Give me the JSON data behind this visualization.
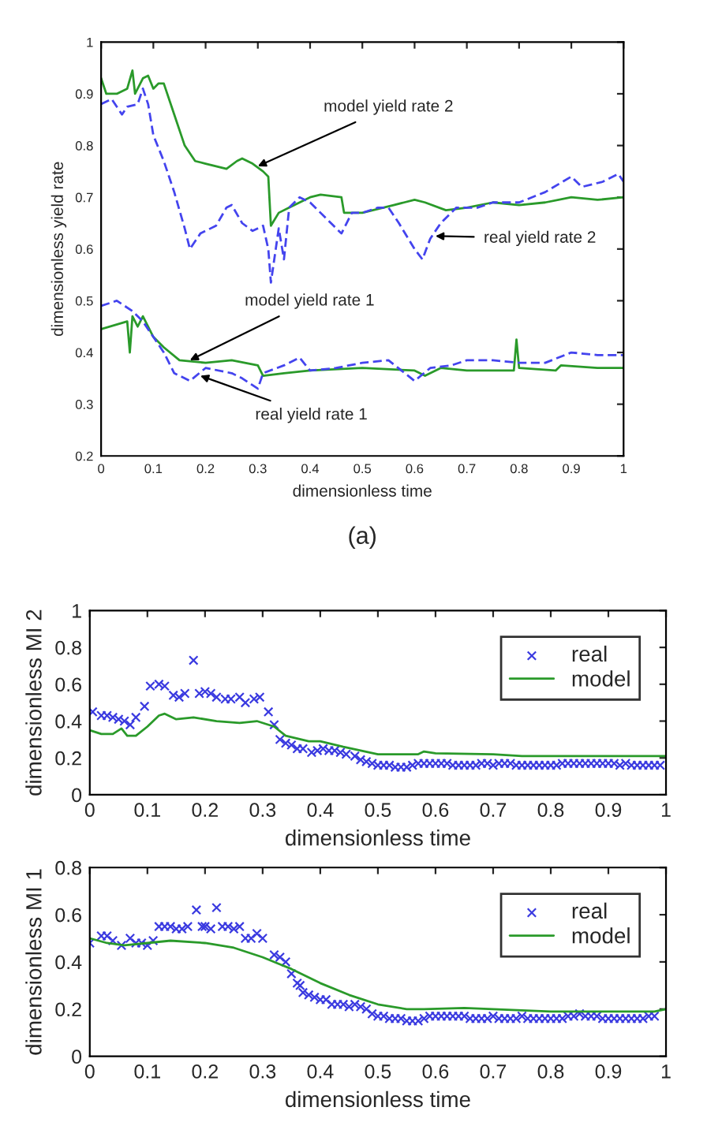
{
  "chart_data": [
    {
      "type": "line",
      "xlabel": "dimensionless time",
      "ylabel": "dimensionless yield rate",
      "xlim": [
        0,
        1
      ],
      "ylim": [
        0.2,
        1
      ],
      "xticks": [
        0,
        0.1,
        0.2,
        0.3,
        0.4,
        0.5,
        0.6,
        0.7,
        0.8,
        0.9,
        1
      ],
      "yticks": [
        0.2,
        0.3,
        0.4,
        0.5,
        0.6,
        0.7,
        0.8,
        0.9,
        1
      ],
      "grid": false,
      "legend": false,
      "series": [
        {
          "color": "#2a9a2a",
          "line_style": "solid",
          "x": [
            0,
            0.01,
            0.03,
            0.05,
            0.06,
            0.065,
            0.08,
            0.09,
            0.1,
            0.11,
            0.12,
            0.14,
            0.16,
            0.18,
            0.2,
            0.22,
            0.24,
            0.26,
            0.27,
            0.29,
            0.31,
            0.32,
            0.325,
            0.34,
            0.36,
            0.38,
            0.4,
            0.42,
            0.46,
            0.465,
            0.5,
            0.54,
            0.56,
            0.58,
            0.6,
            0.62,
            0.66,
            0.7,
            0.75,
            0.8,
            0.85,
            0.9,
            0.95,
            1
          ],
          "values": [
            0.93,
            0.9,
            0.9,
            0.91,
            0.945,
            0.9,
            0.93,
            0.935,
            0.91,
            0.92,
            0.92,
            0.86,
            0.8,
            0.77,
            0.765,
            0.76,
            0.755,
            0.77,
            0.775,
            0.765,
            0.75,
            0.74,
            0.645,
            0.67,
            0.68,
            0.69,
            0.7,
            0.705,
            0.7,
            0.67,
            0.67,
            0.68,
            0.685,
            0.69,
            0.695,
            0.69,
            0.675,
            0.68,
            0.69,
            0.685,
            0.69,
            0.7,
            0.695,
            0.7
          ]
        },
        {
          "color": "#4444ee",
          "line_style": "dashed",
          "x": [
            0,
            0.02,
            0.04,
            0.05,
            0.07,
            0.08,
            0.09,
            0.1,
            0.12,
            0.14,
            0.16,
            0.17,
            0.19,
            0.22,
            0.24,
            0.25,
            0.27,
            0.29,
            0.31,
            0.32,
            0.325,
            0.34,
            0.35,
            0.36,
            0.38,
            0.4,
            0.42,
            0.44,
            0.46,
            0.48,
            0.5,
            0.53,
            0.55,
            0.57,
            0.6,
            0.615,
            0.63,
            0.65,
            0.68,
            0.72,
            0.75,
            0.8,
            0.85,
            0.9,
            0.92,
            0.96,
            0.99,
            1
          ],
          "values": [
            0.88,
            0.89,
            0.86,
            0.875,
            0.88,
            0.91,
            0.88,
            0.82,
            0.77,
            0.71,
            0.64,
            0.6,
            0.63,
            0.645,
            0.68,
            0.685,
            0.65,
            0.635,
            0.645,
            0.6,
            0.535,
            0.64,
            0.58,
            0.68,
            0.7,
            0.69,
            0.67,
            0.65,
            0.63,
            0.67,
            0.67,
            0.68,
            0.68,
            0.65,
            0.6,
            0.58,
            0.62,
            0.65,
            0.68,
            0.68,
            0.69,
            0.69,
            0.71,
            0.74,
            0.72,
            0.73,
            0.745,
            0.73
          ]
        },
        {
          "color": "#2a9a2a",
          "line_style": "solid",
          "x": [
            0,
            0.05,
            0.055,
            0.06,
            0.07,
            0.08,
            0.1,
            0.12,
            0.15,
            0.2,
            0.25,
            0.3,
            0.31,
            0.35,
            0.4,
            0.5,
            0.6,
            0.62,
            0.65,
            0.7,
            0.79,
            0.795,
            0.8,
            0.87,
            0.88,
            0.95,
            1
          ],
          "values": [
            0.445,
            0.46,
            0.4,
            0.47,
            0.45,
            0.47,
            0.43,
            0.41,
            0.385,
            0.38,
            0.385,
            0.375,
            0.355,
            0.36,
            0.365,
            0.37,
            0.365,
            0.355,
            0.37,
            0.365,
            0.365,
            0.425,
            0.37,
            0.365,
            0.375,
            0.37,
            0.37
          ]
        },
        {
          "color": "#4444ee",
          "line_style": "dashed",
          "x": [
            0,
            0.03,
            0.06,
            0.08,
            0.1,
            0.12,
            0.14,
            0.17,
            0.2,
            0.25,
            0.27,
            0.3,
            0.31,
            0.35,
            0.38,
            0.4,
            0.45,
            0.5,
            0.55,
            0.6,
            0.63,
            0.67,
            0.7,
            0.75,
            0.8,
            0.85,
            0.9,
            0.95,
            1
          ],
          "values": [
            0.49,
            0.5,
            0.48,
            0.46,
            0.43,
            0.4,
            0.36,
            0.345,
            0.37,
            0.36,
            0.35,
            0.33,
            0.36,
            0.375,
            0.39,
            0.365,
            0.37,
            0.38,
            0.385,
            0.345,
            0.37,
            0.375,
            0.385,
            0.385,
            0.38,
            0.38,
            0.4,
            0.395,
            0.395
          ]
        }
      ],
      "annotations": [
        {
          "text": "model yield rate 2",
          "x": 0.3,
          "y": 0.76
        },
        {
          "text": "real yield rate 2",
          "x": 0.64,
          "y": 0.625
        },
        {
          "text": "model yield rate 1",
          "x": 0.17,
          "y": 0.385
        },
        {
          "text": "real yield rate 1",
          "x": 0.19,
          "y": 0.355
        },
        "(a)"
      ]
    },
    {
      "type": "line",
      "xlabel": "dimensionless time",
      "ylabel": "dimensionless MI 2",
      "xlim": [
        0,
        1
      ],
      "ylim": [
        0,
        1
      ],
      "xticks": [
        0,
        0.1,
        0.2,
        0.3,
        0.4,
        0.5,
        0.6,
        0.7,
        0.8,
        0.9,
        1
      ],
      "yticks": [
        0,
        0.2,
        0.4,
        0.6,
        0.8,
        1
      ],
      "grid": false,
      "legend": "top right",
      "series": [
        {
          "name": "real",
          "type": "scatter",
          "marker": "cross",
          "color": "#3a3ae0",
          "x": [
            0.005,
            0.02,
            0.03,
            0.04,
            0.05,
            0.06,
            0.07,
            0.08,
            0.095,
            0.105,
            0.12,
            0.13,
            0.145,
            0.155,
            0.165,
            0.18,
            0.19,
            0.2,
            0.21,
            0.22,
            0.235,
            0.245,
            0.26,
            0.27,
            0.285,
            0.295,
            0.31,
            0.32,
            0.33,
            0.34,
            0.35,
            0.36,
            0.37,
            0.385,
            0.395,
            0.405,
            0.415,
            0.425,
            0.435,
            0.445,
            0.46,
            0.47,
            0.48,
            0.49,
            0.5,
            0.51,
            0.52,
            0.53,
            0.54,
            0.55,
            0.56,
            0.57,
            0.58,
            0.59,
            0.6,
            0.61,
            0.62,
            0.63,
            0.64,
            0.65,
            0.66,
            0.67,
            0.68,
            0.69,
            0.7,
            0.71,
            0.72,
            0.73,
            0.74,
            0.75,
            0.76,
            0.77,
            0.78,
            0.79,
            0.8,
            0.81,
            0.82,
            0.83,
            0.84,
            0.85,
            0.86,
            0.87,
            0.88,
            0.89,
            0.9,
            0.91,
            0.92,
            0.93,
            0.94,
            0.95,
            0.96,
            0.97,
            0.98,
            0.99
          ],
          "values": [
            0.45,
            0.43,
            0.43,
            0.42,
            0.41,
            0.4,
            0.38,
            0.42,
            0.48,
            0.59,
            0.6,
            0.59,
            0.54,
            0.53,
            0.55,
            0.73,
            0.55,
            0.56,
            0.55,
            0.53,
            0.52,
            0.52,
            0.53,
            0.5,
            0.52,
            0.53,
            0.45,
            0.38,
            0.3,
            0.28,
            0.27,
            0.25,
            0.25,
            0.23,
            0.24,
            0.25,
            0.24,
            0.24,
            0.23,
            0.22,
            0.21,
            0.19,
            0.18,
            0.17,
            0.16,
            0.16,
            0.16,
            0.15,
            0.15,
            0.15,
            0.16,
            0.17,
            0.17,
            0.17,
            0.17,
            0.17,
            0.17,
            0.16,
            0.16,
            0.16,
            0.16,
            0.16,
            0.17,
            0.17,
            0.16,
            0.17,
            0.17,
            0.17,
            0.16,
            0.16,
            0.16,
            0.16,
            0.16,
            0.16,
            0.16,
            0.16,
            0.17,
            0.17,
            0.17,
            0.17,
            0.17,
            0.17,
            0.17,
            0.17,
            0.17,
            0.17,
            0.16,
            0.17,
            0.16,
            0.16,
            0.16,
            0.16,
            0.16,
            0.16
          ]
        },
        {
          "name": "model",
          "type": "line",
          "line_style": "solid",
          "color": "#2a9a2a",
          "x": [
            0,
            0.02,
            0.04,
            0.055,
            0.065,
            0.08,
            0.1,
            0.12,
            0.13,
            0.15,
            0.18,
            0.22,
            0.26,
            0.29,
            0.32,
            0.34,
            0.38,
            0.4,
            0.44,
            0.47,
            0.5,
            0.55,
            0.57,
            0.58,
            0.6,
            0.7,
            0.75,
            0.8,
            0.9,
            1
          ],
          "values": [
            0.35,
            0.33,
            0.33,
            0.36,
            0.32,
            0.32,
            0.37,
            0.43,
            0.44,
            0.41,
            0.42,
            0.4,
            0.39,
            0.4,
            0.37,
            0.32,
            0.29,
            0.29,
            0.26,
            0.24,
            0.22,
            0.22,
            0.22,
            0.235,
            0.225,
            0.22,
            0.21,
            0.21,
            0.21,
            0.21
          ]
        }
      ]
    },
    {
      "type": "line",
      "xlabel": "dimensionless time",
      "ylabel": "dimensionless MI 1",
      "xlim": [
        0,
        1
      ],
      "ylim": [
        0,
        0.8
      ],
      "xticks": [
        0,
        0.1,
        0.2,
        0.3,
        0.4,
        0.5,
        0.6,
        0.7,
        0.8,
        0.9,
        1
      ],
      "yticks": [
        0,
        0.2,
        0.4,
        0.6,
        0.8
      ],
      "grid": false,
      "legend": "top right",
      "series": [
        {
          "name": "real",
          "type": "scatter",
          "marker": "cross",
          "color": "#3a3ae0",
          "x": [
            0.0,
            0.02,
            0.03,
            0.04,
            0.055,
            0.07,
            0.08,
            0.09,
            0.1,
            0.11,
            0.12,
            0.13,
            0.14,
            0.15,
            0.16,
            0.17,
            0.185,
            0.195,
            0.2,
            0.21,
            0.22,
            0.23,
            0.24,
            0.25,
            0.26,
            0.27,
            0.28,
            0.29,
            0.3,
            0.32,
            0.33,
            0.34,
            0.35,
            0.36,
            0.365,
            0.37,
            0.38,
            0.39,
            0.4,
            0.41,
            0.42,
            0.43,
            0.44,
            0.45,
            0.46,
            0.47,
            0.48,
            0.49,
            0.5,
            0.51,
            0.52,
            0.53,
            0.54,
            0.55,
            0.56,
            0.57,
            0.58,
            0.59,
            0.6,
            0.61,
            0.62,
            0.63,
            0.64,
            0.65,
            0.66,
            0.67,
            0.68,
            0.69,
            0.7,
            0.71,
            0.72,
            0.73,
            0.74,
            0.75,
            0.76,
            0.77,
            0.78,
            0.79,
            0.8,
            0.81,
            0.82,
            0.83,
            0.84,
            0.85,
            0.86,
            0.87,
            0.88,
            0.89,
            0.9,
            0.91,
            0.92,
            0.93,
            0.94,
            0.95,
            0.96,
            0.97,
            0.98
          ],
          "values": [
            0.48,
            0.51,
            0.51,
            0.49,
            0.47,
            0.5,
            0.48,
            0.48,
            0.47,
            0.49,
            0.55,
            0.55,
            0.55,
            0.54,
            0.54,
            0.55,
            0.62,
            0.55,
            0.55,
            0.54,
            0.63,
            0.55,
            0.55,
            0.54,
            0.55,
            0.5,
            0.5,
            0.52,
            0.5,
            0.43,
            0.42,
            0.4,
            0.35,
            0.31,
            0.3,
            0.27,
            0.26,
            0.25,
            0.24,
            0.24,
            0.22,
            0.22,
            0.22,
            0.21,
            0.22,
            0.21,
            0.2,
            0.18,
            0.17,
            0.17,
            0.16,
            0.16,
            0.16,
            0.15,
            0.15,
            0.15,
            0.16,
            0.17,
            0.17,
            0.17,
            0.17,
            0.17,
            0.17,
            0.17,
            0.16,
            0.16,
            0.16,
            0.16,
            0.17,
            0.16,
            0.16,
            0.16,
            0.16,
            0.17,
            0.16,
            0.16,
            0.16,
            0.16,
            0.16,
            0.16,
            0.16,
            0.17,
            0.17,
            0.18,
            0.17,
            0.17,
            0.17,
            0.16,
            0.16,
            0.16,
            0.16,
            0.16,
            0.16,
            0.16,
            0.16,
            0.17,
            0.17
          ]
        },
        {
          "name": "model",
          "type": "line",
          "line_style": "solid",
          "color": "#2a9a2a",
          "x": [
            0,
            0.03,
            0.06,
            0.1,
            0.14,
            0.2,
            0.25,
            0.3,
            0.33,
            0.35,
            0.4,
            0.45,
            0.5,
            0.55,
            0.58,
            0.65,
            0.7,
            0.8,
            0.9,
            0.98,
            1
          ],
          "values": [
            0.5,
            0.48,
            0.47,
            0.48,
            0.49,
            0.48,
            0.46,
            0.42,
            0.39,
            0.37,
            0.31,
            0.26,
            0.22,
            0.2,
            0.2,
            0.205,
            0.2,
            0.19,
            0.19,
            0.19,
            0.2
          ]
        }
      ]
    }
  ]
}
